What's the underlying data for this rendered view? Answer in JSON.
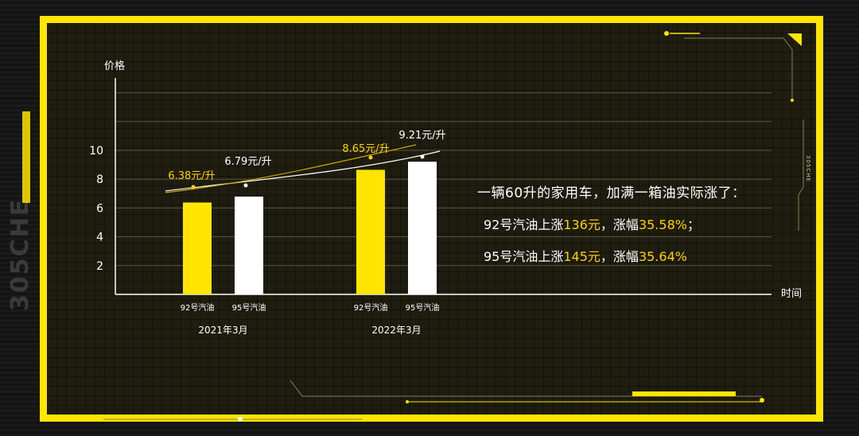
{
  "side_brand": "305CHE",
  "side_tag": "305CHE",
  "chart_data": {
    "type": "bar",
    "ylabel": "价格",
    "xlabel": "时间",
    "ylim": [
      0,
      10
    ],
    "yticks": [
      "2",
      "4",
      "6",
      "8",
      "10"
    ],
    "groups": [
      {
        "label": "2021年3月",
        "bars": [
          {
            "name": "92号汽油",
            "value": 6.38,
            "label": "6.38元/升",
            "color": "#ffe500"
          },
          {
            "name": "95号汽油",
            "value": 6.79,
            "label": "6.79元/升",
            "color": "#ffffff"
          }
        ]
      },
      {
        "label": "2022年3月",
        "bars": [
          {
            "name": "92号汽油",
            "value": 8.65,
            "label": "8.65元/升",
            "color": "#ffe500"
          },
          {
            "name": "95号汽油",
            "value": 9.21,
            "label": "9.21元/升",
            "color": "#ffffff"
          }
        ]
      }
    ],
    "grid": true
  },
  "info": {
    "heading": "一辆60升的家用车，加满一箱油实际涨了：",
    "lines": [
      {
        "prefix": "92号汽油上涨",
        "amount": "136元",
        "mid": "，涨幅",
        "pct": "35.58%",
        "suffix": "；"
      },
      {
        "prefix": "95号汽油上涨",
        "amount": "145元",
        "mid": "，涨幅",
        "pct": "35.64%",
        "suffix": ""
      }
    ]
  },
  "colors": {
    "accent": "#ffe500",
    "label_yellow": "#ffd400",
    "axis": "#ffffff",
    "grid": "#5a5440"
  }
}
